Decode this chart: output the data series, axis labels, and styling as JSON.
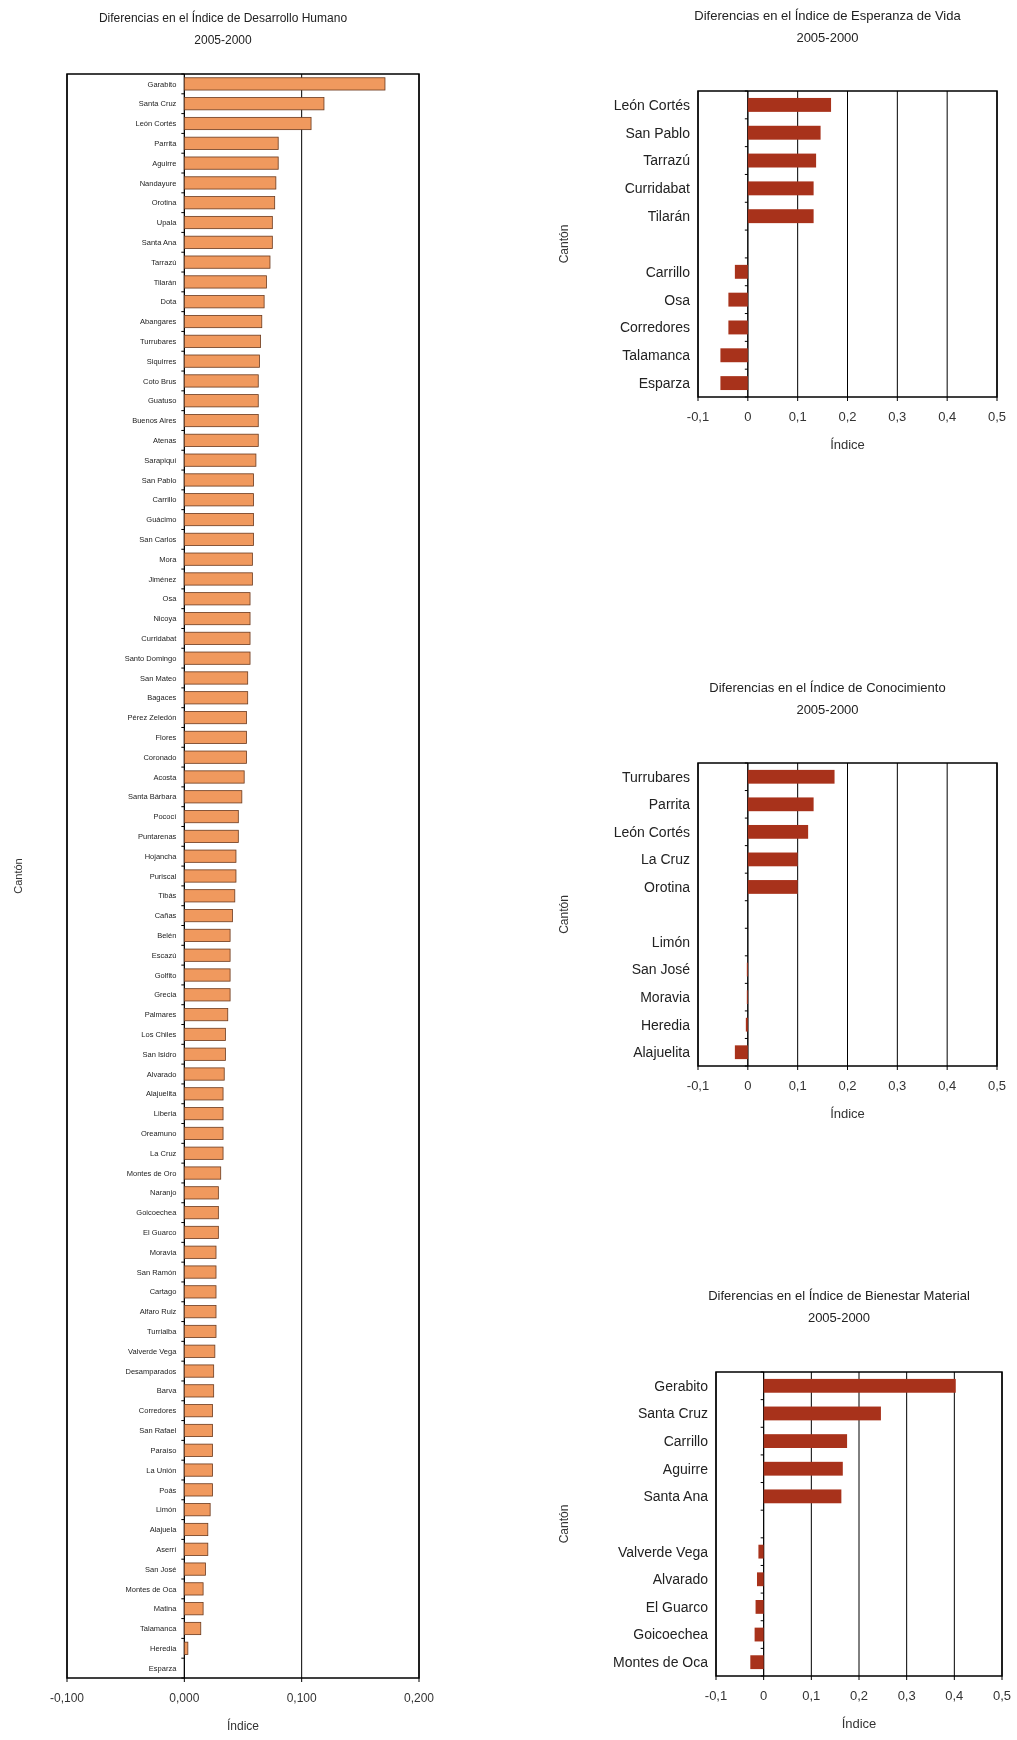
{
  "chart_data": [
    {
      "type": "bar",
      "orientation": "horizontal",
      "title": "Diferencias en el Índice de Desarrollo Humano",
      "subtitle": "2005-2000",
      "xlabel": "Índice",
      "ylabel": "Cantón",
      "color": "#f0995e",
      "grid": "x",
      "xlim": [
        -0.1,
        0.2
      ],
      "xticks": [
        {
          "value": -0.1,
          "label": "-0,100"
        },
        {
          "value": 0,
          "label": "0,000"
        },
        {
          "value": 0.1,
          "label": "0,100"
        },
        {
          "value": 0.2,
          "label": "0,200"
        }
      ],
      "categories": [
        "Garabito",
        "Santa Cruz",
        "León Cortés",
        "Parrita",
        "Aguirre",
        "Nandayure",
        "Orotina",
        "Upala",
        "Santa Ana",
        "Tarrazú",
        "Tilarán",
        "Dota",
        "Abangares",
        "Turrubares",
        "Siquirres",
        "Coto Brus",
        "Guatuso",
        "Buenos Aires",
        "Atenas",
        "Sarapiquí",
        "San Pablo",
        "Carrillo",
        "Guácimo",
        "San Carlos",
        "Mora",
        "Jiménez",
        "Osa",
        "Nicoya",
        "Curridabat",
        "Santo Domingo",
        "San Mateo",
        "Bagaces",
        "Pérez Zeledón",
        "Flores",
        "Coronado",
        "Acosta",
        "Santa Bárbara",
        "Pococí",
        "Puntarenas",
        "Hojancha",
        "Puriscal",
        "Tibás",
        "Cañas",
        "Belén",
        "Escazú",
        "Golfito",
        "Grecia",
        "Palmares",
        "Los Chiles",
        "San Isidro",
        "Alvarado",
        "Alajuelita",
        "Liberia",
        "Oreamuno",
        "La Cruz",
        "Montes de Oro",
        "Naranjo",
        "Goicoechea",
        "El Guarco",
        "Moravia",
        "San Ramón",
        "Cartago",
        "Alfaro Ruiz",
        "Turrialba",
        "Valverde Vega",
        "Desamparados",
        "Barva",
        "Corredores",
        "San Rafael",
        "Paraíso",
        "La Unión",
        "Poás",
        "Limón",
        "Alajuela",
        "Aserrí",
        "San José",
        "Montes de Oca",
        "Matina",
        "Talamanca",
        "Heredia",
        "Esparza"
      ],
      "values": [
        0.171,
        0.119,
        0.108,
        0.08,
        0.08,
        0.078,
        0.077,
        0.075,
        0.075,
        0.073,
        0.07,
        0.068,
        0.066,
        0.065,
        0.064,
        0.063,
        0.063,
        0.063,
        0.063,
        0.061,
        0.059,
        0.059,
        0.059,
        0.059,
        0.058,
        0.058,
        0.056,
        0.056,
        0.056,
        0.056,
        0.054,
        0.054,
        0.053,
        0.053,
        0.053,
        0.051,
        0.049,
        0.046,
        0.046,
        0.044,
        0.044,
        0.043,
        0.041,
        0.039,
        0.039,
        0.039,
        0.039,
        0.037,
        0.035,
        0.035,
        0.034,
        0.033,
        0.033,
        0.033,
        0.033,
        0.031,
        0.029,
        0.029,
        0.029,
        0.027,
        0.027,
        0.027,
        0.027,
        0.027,
        0.026,
        0.025,
        0.025,
        0.024,
        0.024,
        0.024,
        0.024,
        0.024,
        0.022,
        0.02,
        0.02,
        0.018,
        0.016,
        0.016,
        0.014,
        0.003,
        0
      ]
    },
    {
      "type": "bar",
      "orientation": "horizontal",
      "title": "Diferencias en el Índice de Esperanza de Vida",
      "subtitle": "2005-2000",
      "xlabel": "Índice",
      "ylabel": "Cantón",
      "color": "#a8321b",
      "grid": "x",
      "xlim": [
        -0.1,
        0.5
      ],
      "xticks": [
        {
          "value": -0.1,
          "label": "-0,1"
        },
        {
          "value": 0,
          "label": "0"
        },
        {
          "value": 0.1,
          "label": "0,1"
        },
        {
          "value": 0.2,
          "label": "0,2"
        },
        {
          "value": 0.3,
          "label": "0,3"
        },
        {
          "value": 0.4,
          "label": "0,4"
        },
        {
          "value": 0.5,
          "label": "0,5"
        }
      ],
      "categories": [
        "León Cortés",
        "San Pablo",
        "Tarrazú",
        "Curridabat",
        "Tilarán",
        null,
        "Carrillo",
        "Osa",
        "Corredores",
        "Talamanca",
        "Esparza"
      ],
      "values": [
        0.167,
        0.146,
        0.137,
        0.132,
        0.132,
        null,
        -0.026,
        -0.039,
        -0.039,
        -0.055,
        -0.055
      ]
    },
    {
      "type": "bar",
      "orientation": "horizontal",
      "title": "Diferencias en el Índice de Conocimiento",
      "subtitle": "2005-2000",
      "xlabel": "Índice",
      "ylabel": "Cantón",
      "color": "#a8321b",
      "grid": "x",
      "xlim": [
        -0.1,
        0.5
      ],
      "xticks": [
        {
          "value": -0.1,
          "label": "-0,1"
        },
        {
          "value": 0,
          "label": "0"
        },
        {
          "value": 0.1,
          "label": "0,1"
        },
        {
          "value": 0.2,
          "label": "0,2"
        },
        {
          "value": 0.3,
          "label": "0,3"
        },
        {
          "value": 0.4,
          "label": "0,4"
        },
        {
          "value": 0.5,
          "label": "0,5"
        }
      ],
      "categories": [
        "Turrubares",
        "Parrita",
        "León Cortés",
        "La Cruz",
        "Orotina",
        null,
        "Limón",
        "San José",
        "Moravia",
        "Heredia",
        "Alajuelita"
      ],
      "values": [
        0.174,
        0.132,
        0.121,
        0.1,
        0.1,
        null,
        0,
        -0.002,
        -0.002,
        -0.004,
        -0.026
      ]
    },
    {
      "type": "bar",
      "orientation": "horizontal",
      "title": "Diferencias en el Índice de Bienestar Material",
      "subtitle": "2005-2000",
      "xlabel": "Índice",
      "ylabel": "Cantón",
      "color": "#a8321b",
      "grid": "x",
      "xlim": [
        -0.1,
        0.5
      ],
      "xticks": [
        {
          "value": -0.1,
          "label": "-0,1"
        },
        {
          "value": 0,
          "label": "0"
        },
        {
          "value": 0.1,
          "label": "0,1"
        },
        {
          "value": 0.2,
          "label": "0,2"
        },
        {
          "value": 0.3,
          "label": "0,3"
        },
        {
          "value": 0.4,
          "label": "0,4"
        },
        {
          "value": 0.5,
          "label": "0,5"
        }
      ],
      "categories": [
        "Gerabito",
        "Santa Cruz",
        "Carrillo",
        "Aguirre",
        "Santa Ana",
        null,
        "Valverde Vega",
        "Alvarado",
        "El Guarco",
        "Goicoechea",
        "Montes de Oca"
      ],
      "values": [
        0.403,
        0.246,
        0.175,
        0.166,
        0.163,
        null,
        -0.011,
        -0.014,
        -0.017,
        -0.019,
        -0.028
      ]
    }
  ]
}
